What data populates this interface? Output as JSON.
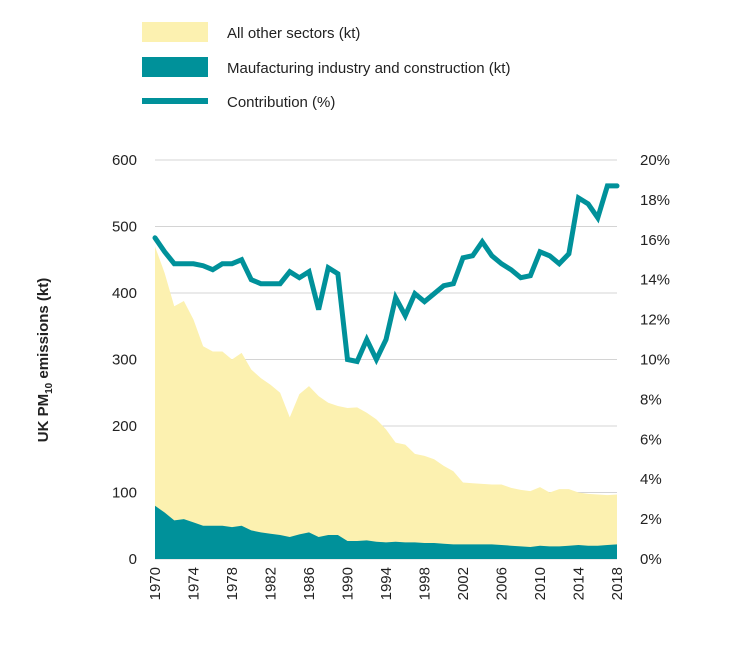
{
  "chart_data": {
    "type": "area",
    "title": "",
    "ylabel": "UK PM10 emissions (kt)",
    "ylabel_main": "UK PM",
    "ylabel_sub": "10",
    "ylabel_rest": " emissions (kt)",
    "ylim": [
      0,
      600
    ],
    "y2lim": [
      0,
      20
    ],
    "yticks": [
      0,
      100,
      200,
      300,
      400,
      500,
      600
    ],
    "y2ticks": [
      "0%",
      "2%",
      "4%",
      "6%",
      "8%",
      "10%",
      "12%",
      "14%",
      "16%",
      "18%",
      "20%"
    ],
    "xticks": [
      "1970",
      "1974",
      "1978",
      "1982",
      "1986",
      "1990",
      "1994",
      "1998",
      "2002",
      "2006",
      "2010",
      "2014",
      "2018"
    ],
    "grid": true,
    "legend_position": "top-left",
    "colors": {
      "other": "#fcf1b0",
      "manufacturing": "#00919a",
      "contribution": "#00919a"
    },
    "x": [
      1970,
      1971,
      1972,
      1973,
      1974,
      1975,
      1976,
      1977,
      1978,
      1979,
      1980,
      1981,
      1982,
      1983,
      1984,
      1985,
      1986,
      1987,
      1988,
      1989,
      1990,
      1991,
      1992,
      1993,
      1994,
      1995,
      1996,
      1997,
      1998,
      1999,
      2000,
      2001,
      2002,
      2003,
      2004,
      2005,
      2006,
      2007,
      2008,
      2009,
      2010,
      2011,
      2012,
      2013,
      2014,
      2015,
      2016,
      2017,
      2018
    ],
    "series": [
      {
        "name": "Maufacturing industry and construction (kt)",
        "kind": "area",
        "values": [
          80,
          70,
          58,
          60,
          55,
          50,
          50,
          50,
          48,
          50,
          43,
          40,
          38,
          36,
          33,
          37,
          40,
          33,
          36,
          36,
          27,
          27,
          28,
          26,
          25,
          26,
          25,
          25,
          24,
          24,
          23,
          22,
          22,
          22,
          22,
          22,
          21,
          20,
          19,
          18,
          20,
          19,
          19,
          20,
          21,
          20,
          20,
          21,
          22
        ]
      },
      {
        "name": "All other sectors (kt)",
        "kind": "area",
        "values": [
          390,
          360,
          322,
          328,
          305,
          270,
          262,
          262,
          252,
          260,
          242,
          232,
          224,
          214,
          180,
          211,
          220,
          212,
          199,
          194,
          200,
          201,
          192,
          184,
          170,
          149,
          147,
          133,
          131,
          126,
          117,
          110,
          93,
          92,
          91,
          90,
          91,
          87,
          85,
          84,
          88,
          81,
          86,
          85,
          79,
          78,
          77,
          75,
          75
        ]
      },
      {
        "name": "Contribution (%)",
        "kind": "line",
        "axis": "right",
        "values": [
          16.1,
          15.4,
          14.8,
          14.8,
          14.8,
          14.7,
          14.5,
          14.8,
          14.8,
          15.0,
          14.0,
          13.8,
          13.8,
          13.8,
          14.4,
          14.1,
          14.4,
          12.5,
          14.6,
          14.3,
          10.0,
          9.9,
          11.0,
          10.0,
          11.0,
          13.1,
          12.2,
          13.3,
          12.9,
          13.3,
          13.7,
          13.8,
          15.1,
          15.2,
          15.9,
          15.2,
          14.8,
          14.5,
          14.1,
          14.2,
          15.4,
          15.2,
          14.8,
          15.3,
          18.1,
          17.8,
          17.1,
          18.7,
          18.7
        ]
      }
    ]
  }
}
